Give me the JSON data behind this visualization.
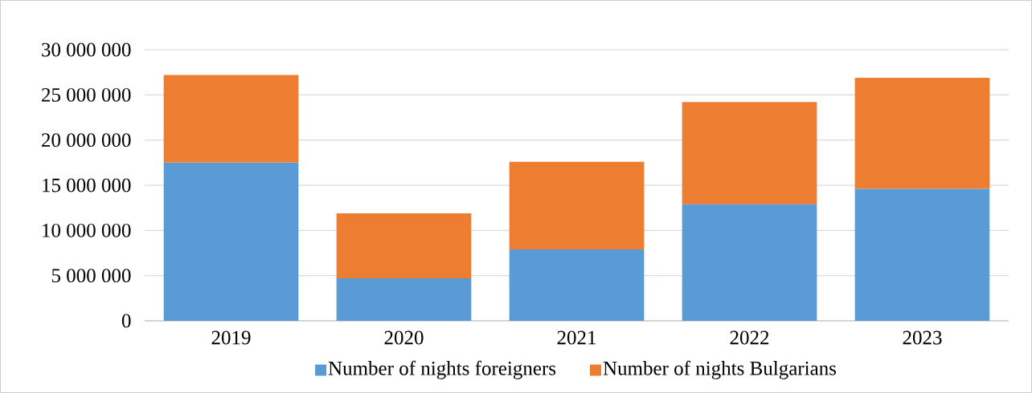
{
  "chart_data": {
    "type": "bar",
    "stacked": true,
    "categories": [
      "2019",
      "2020",
      "2021",
      "2022",
      "2023"
    ],
    "series": [
      {
        "name": "Number of nights foreigners",
        "color": "#5b9bd5",
        "values": [
          17500000,
          4700000,
          7900000,
          12900000,
          14600000
        ]
      },
      {
        "name": "Number of nights Bulgarians",
        "color": "#ed7d31",
        "values": [
          9700000,
          7200000,
          9700000,
          11300000,
          12300000
        ]
      }
    ],
    "ylim": [
      0,
      30000000
    ],
    "yticks": [
      {
        "value": 0,
        "label": "0"
      },
      {
        "value": 5000000,
        "label": "5 000 000"
      },
      {
        "value": 10000000,
        "label": "10 000 000"
      },
      {
        "value": 15000000,
        "label": "15 000 000"
      },
      {
        "value": 20000000,
        "label": "20 000 000"
      },
      {
        "value": 25000000,
        "label": "25 000 000"
      },
      {
        "value": 30000000,
        "label": "30 000 000"
      }
    ],
    "grid": "y",
    "legend": "bottom"
  }
}
